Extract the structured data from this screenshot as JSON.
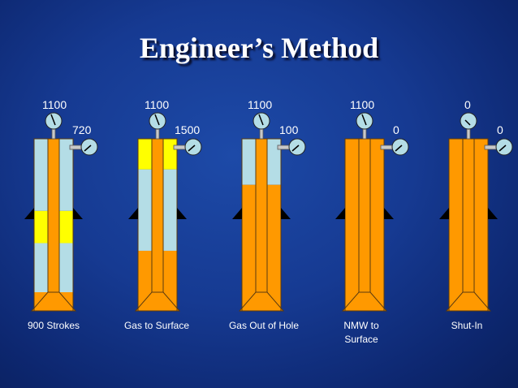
{
  "title": "Engineer’s Method",
  "colors": {
    "mud": "#ff9900",
    "annulus": "#b4dde6",
    "gas": "#ffff00",
    "outline": "#5a3a10"
  },
  "wells": [
    {
      "left_gauge": "1100",
      "right_gauge": "720",
      "caption": [
        "900 Strokes"
      ],
      "drillpipe": "mud",
      "annulus": [
        [
          "annulus",
          0,
          0.47
        ],
        [
          "gas",
          0.47,
          0.68
        ],
        [
          "annulus",
          0.68,
          1
        ]
      ]
    },
    {
      "left_gauge": "1100",
      "right_gauge": "1500",
      "caption": [
        "Gas to Surface"
      ],
      "drillpipe": "mud",
      "annulus": [
        [
          "gas",
          0,
          0.2
        ],
        [
          "annulus",
          0.2,
          0.73
        ],
        [
          "mud",
          0.73,
          1
        ]
      ]
    },
    {
      "left_gauge": "1100",
      "right_gauge": "100",
      "caption": [
        "Gas Out of Hole"
      ],
      "drillpipe": "mud",
      "annulus": [
        [
          "annulus",
          0,
          0.3
        ],
        [
          "mud",
          0.3,
          1
        ]
      ]
    },
    {
      "left_gauge": "1100",
      "right_gauge": "0",
      "caption": [
        "NMW to",
        "Surface"
      ],
      "drillpipe": "mud",
      "annulus": [
        [
          "mud",
          0,
          1
        ]
      ]
    },
    {
      "left_gauge": "0",
      "right_gauge": "0",
      "caption": [
        "Shut-In"
      ],
      "drillpipe": "mud",
      "annulus": [
        [
          "mud",
          0,
          1
        ]
      ]
    }
  ]
}
